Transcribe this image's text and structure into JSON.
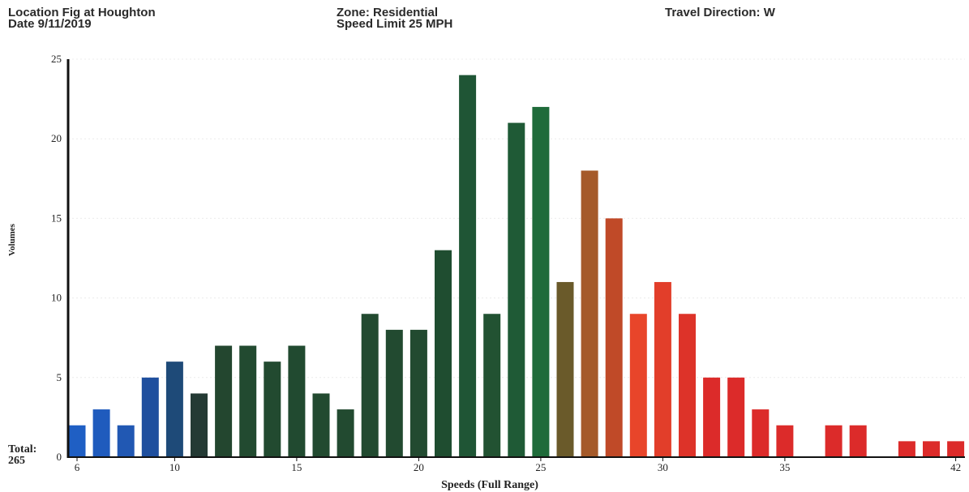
{
  "header": {
    "location": "Location  Fig at Houghton",
    "date": "Date  9/11/2019",
    "zone": "Zone: Residential",
    "speed_limit": "Speed Limit 25 MPH",
    "direction": "Travel Direction: W"
  },
  "total": {
    "label": "Total:",
    "value": "265"
  },
  "chart_data": {
    "type": "bar",
    "title": "",
    "xlabel": "Speeds (Full Range)",
    "ylabel": "Volumes",
    "ylim": [
      0,
      25
    ],
    "yticks": [
      0,
      5,
      10,
      15,
      20,
      25
    ],
    "xticks": [
      6,
      10,
      15,
      20,
      25,
      30,
      35,
      42
    ],
    "grid": true,
    "categories": [
      6,
      7,
      8,
      9,
      10,
      11,
      12,
      13,
      14,
      15,
      16,
      17,
      18,
      19,
      20,
      21,
      22,
      23,
      24,
      25,
      26,
      27,
      28,
      29,
      30,
      31,
      32,
      33,
      34,
      35,
      36,
      37,
      38,
      39,
      40,
      41,
      42
    ],
    "values": [
      2,
      3,
      2,
      5,
      6,
      4,
      7,
      7,
      6,
      7,
      4,
      3,
      9,
      8,
      8,
      13,
      24,
      9,
      21,
      22,
      11,
      18,
      15,
      9,
      11,
      9,
      5,
      5,
      3,
      2,
      0,
      2,
      2,
      0,
      1,
      1,
      1
    ],
    "colors": [
      "#1f5fc4",
      "#1f5bbd",
      "#2158b3",
      "#1f4f9e",
      "#1e4a78",
      "#243a34",
      "#23462f",
      "#224a30",
      "#224a30",
      "#214a30",
      "#224a30",
      "#224a30",
      "#224a30",
      "#224a30",
      "#224a30",
      "#1f4d30",
      "#1f5535",
      "#225232",
      "#1f5a36",
      "#1f6b3a",
      "#6a5a2a",
      "#a55a2a",
      "#c04a28",
      "#e8452a",
      "#e23e2a",
      "#dd3329",
      "#dc2b2a",
      "#dc2b2a",
      "#dc2b2a",
      "#dc2b2a",
      "#dc2b2a",
      "#dc2b2a",
      "#dc2b2a",
      "#dc2b2a",
      "#dc2b2a",
      "#dc2b2a",
      "#dc2b2a"
    ]
  }
}
